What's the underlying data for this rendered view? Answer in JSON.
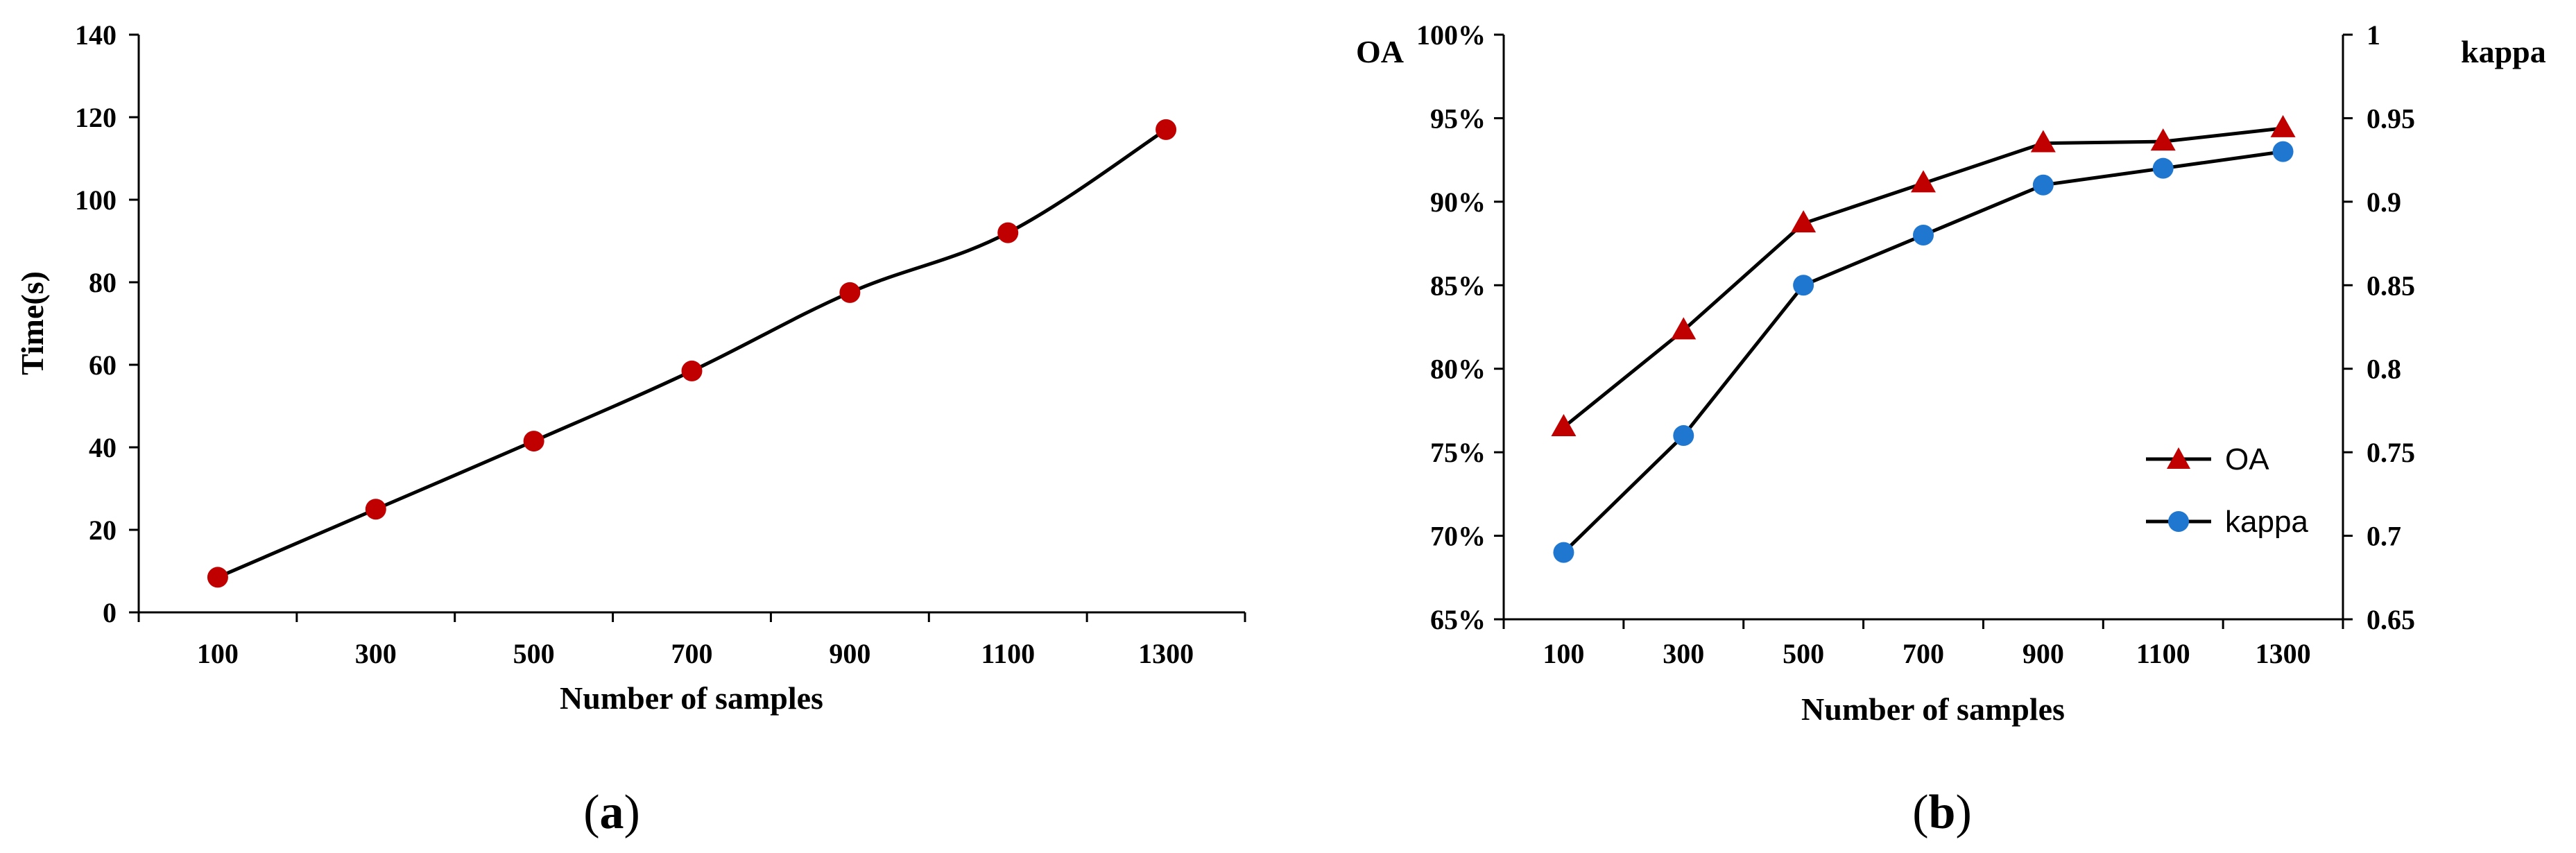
{
  "chart_data": [
    {
      "type": "line",
      "panel": "a",
      "categories": [
        "100",
        "300",
        "500",
        "700",
        "900",
        "1100",
        "1300"
      ],
      "series": [
        {
          "name": "Time",
          "values": [
            8.5,
            25,
            41.5,
            58.5,
            77.5,
            92,
            117
          ],
          "color": "#c00000",
          "marker": "circle"
        }
      ],
      "title": "",
      "xlabel": "Number of samples",
      "ylabel": "Time(s)",
      "ylim": [
        0,
        140
      ],
      "yticks": [
        "0",
        "20",
        "40",
        "60",
        "80",
        "100",
        "120",
        "140"
      ],
      "caption": {
        "open": "(",
        "letter": "a",
        "close": ")"
      }
    },
    {
      "type": "line",
      "panel": "b",
      "categories": [
        "100",
        "300",
        "500",
        "700",
        "900",
        "1100",
        "1300"
      ],
      "series": [
        {
          "name": "OA",
          "axis": "left",
          "values": [
            76.5,
            82.3,
            88.7,
            91.1,
            93.5,
            93.6,
            94.4
          ],
          "color": "#c00000",
          "marker": "triangle"
        },
        {
          "name": "kappa",
          "axis": "right",
          "values": [
            0.69,
            0.76,
            0.85,
            0.88,
            0.91,
            0.92,
            0.93
          ],
          "color": "#1f77d0",
          "marker": "circle"
        }
      ],
      "title": "",
      "xlabel": "Number of samples",
      "ylabel_left": "OA",
      "ylabel_right": "kappa",
      "ylim_left": [
        65,
        100
      ],
      "ylim_right": [
        0.65,
        1
      ],
      "yticks_left": [
        "65%",
        "70%",
        "75%",
        "80%",
        "85%",
        "90%",
        "95%",
        "100%"
      ],
      "yticks_right": [
        "0.65",
        "0.7",
        "0.75",
        "0.8",
        "0.85",
        "0.9",
        "0.95",
        "1"
      ],
      "legend": {
        "position": "bottom-right",
        "entries": [
          "OA",
          "kappa"
        ]
      },
      "caption": {
        "open": "(",
        "letter": "b",
        "close": ")"
      }
    }
  ]
}
